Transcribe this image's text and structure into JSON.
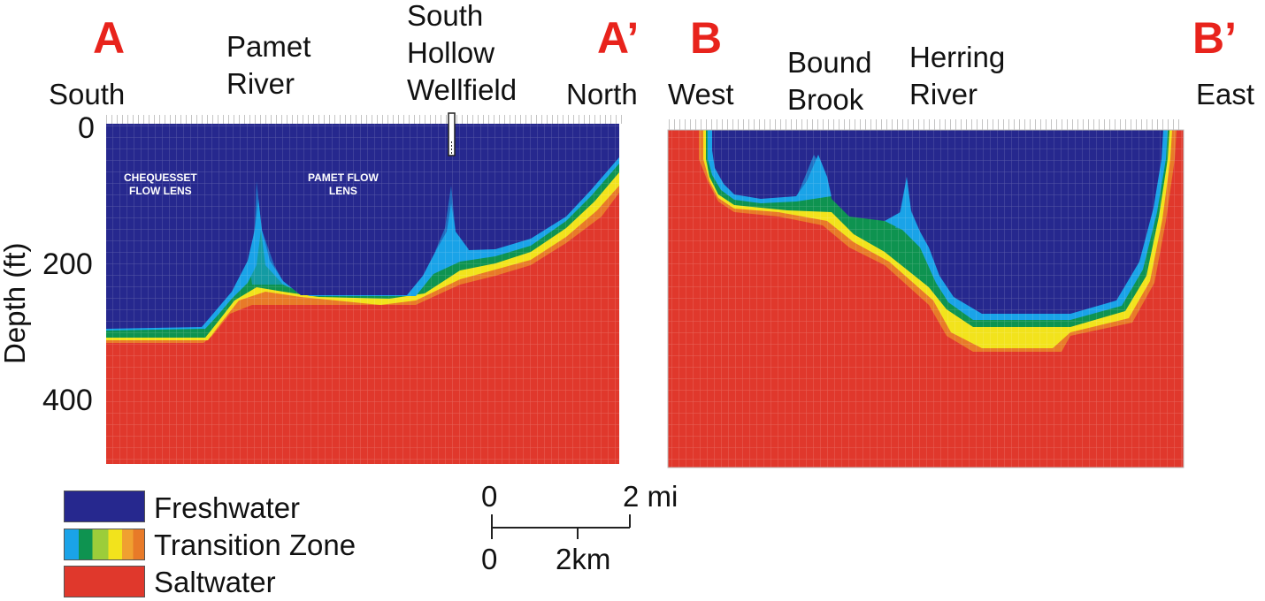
{
  "section_a": {
    "start_marker": "A",
    "end_marker": "A’",
    "start_direction": "South",
    "end_direction": "North",
    "feature_1": [
      "Pamet",
      "River"
    ],
    "feature_2": [
      "South",
      "Hollow",
      "Wellfield"
    ],
    "lens_1": [
      "CHEQUESSET",
      "FLOW LENS"
    ],
    "lens_2": [
      "PAMET FLOW",
      "LENS"
    ],
    "depth_ticks": [
      "0",
      "200",
      "400"
    ],
    "y_axis_label": "Depth (ft)"
  },
  "section_b": {
    "start_marker": "B",
    "end_marker": "B’",
    "start_direction": "West",
    "end_direction": "East",
    "feature_1": [
      "Bound",
      "Brook"
    ],
    "feature_2": [
      "Herring",
      "River"
    ]
  },
  "legend": {
    "items": [
      {
        "label": "Freshwater",
        "colors": [
          "#26288e"
        ]
      },
      {
        "label": "Transition Zone",
        "colors": [
          "#1aa3e8",
          "#0e9350",
          "#9ccd3a",
          "#f2e31c",
          "#f0a030",
          "#e87a28"
        ]
      },
      {
        "label": "Saltwater",
        "colors": [
          "#e0382c"
        ]
      }
    ]
  },
  "scale_bar": {
    "top_start": "0",
    "top_end": "2 mi",
    "bottom_start": "0",
    "bottom_mid": "2km"
  },
  "colors": {
    "fresh": "#26288e",
    "salt": "#e0382c",
    "light_blue": "#1aa3e8",
    "green": "#0e9350",
    "yellow": "#f2e31c",
    "orange": "#e87a28",
    "marker": "#e8231c"
  }
}
